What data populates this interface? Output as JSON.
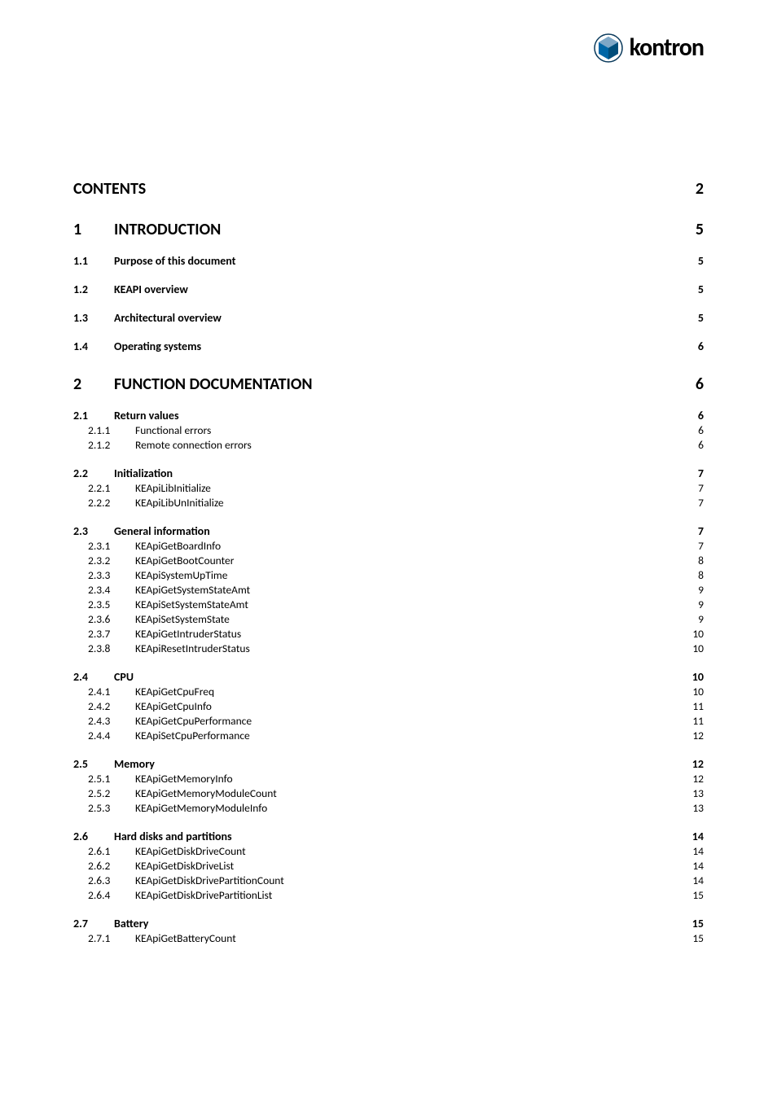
{
  "logo": {
    "brand": "kontron",
    "icon_color_main": "#0066a6",
    "icon_color_accent": "#7fa7c6"
  },
  "toc": {
    "header": {
      "title": "CONTENTS",
      "page": "2"
    },
    "sections": [
      {
        "num": "1",
        "title": "INTRODUCTION",
        "page": "5",
        "subsections": [
          {
            "num": "1.1",
            "title": "Purpose of this document",
            "page": "5",
            "items": []
          },
          {
            "num": "1.2",
            "title": "KEAPI overview",
            "page": "5",
            "items": []
          },
          {
            "num": "1.3",
            "title": "Architectural overview",
            "page": "5",
            "items": []
          },
          {
            "num": "1.4",
            "title": "Operating systems",
            "page": "6",
            "items": []
          }
        ]
      },
      {
        "num": "2",
        "title": "FUNCTION DOCUMENTATION",
        "page": "6",
        "subsections": [
          {
            "num": "2.1",
            "title": "Return values",
            "page": "6",
            "items": [
              {
                "num": "2.1.1",
                "title": "Functional errors",
                "page": "6"
              },
              {
                "num": "2.1.2",
                "title": "Remote connection errors",
                "page": "6"
              }
            ]
          },
          {
            "num": "2.2",
            "title": "Initialization",
            "page": "7",
            "items": [
              {
                "num": "2.2.1",
                "title": "KEApiLibInitialize",
                "page": "7"
              },
              {
                "num": "2.2.2",
                "title": "KEApiLibUnInitialize",
                "page": "7"
              }
            ]
          },
          {
            "num": "2.3",
            "title": "General information",
            "page": "7",
            "items": [
              {
                "num": "2.3.1",
                "title": "KEApiGetBoardInfo",
                "page": "7"
              },
              {
                "num": "2.3.2",
                "title": "KEApiGetBootCounter",
                "page": "8"
              },
              {
                "num": "2.3.3",
                "title": "KEApiSystemUpTime",
                "page": "8"
              },
              {
                "num": "2.3.4",
                "title": "KEApiGetSystemStateAmt",
                "page": "9"
              },
              {
                "num": "2.3.5",
                "title": "KEApiSetSystemStateAmt",
                "page": "9"
              },
              {
                "num": "2.3.6",
                "title": "KEApiSetSystemState",
                "page": "9"
              },
              {
                "num": "2.3.7",
                "title": "KEApiGetIntruderStatus",
                "page": "10"
              },
              {
                "num": "2.3.8",
                "title": "KEApiResetIntruderStatus",
                "page": "10"
              }
            ]
          },
          {
            "num": "2.4",
            "title": "CPU",
            "page": "10",
            "items": [
              {
                "num": "2.4.1",
                "title": "KEApiGetCpuFreq",
                "page": "10"
              },
              {
                "num": "2.4.2",
                "title": "KEApiGetCpuInfo",
                "page": "11"
              },
              {
                "num": "2.4.3",
                "title": "KEApiGetCpuPerformance",
                "page": "11"
              },
              {
                "num": "2.4.4",
                "title": "KEApiSetCpuPerformance",
                "page": "12"
              }
            ]
          },
          {
            "num": "2.5",
            "title": "Memory",
            "page": "12",
            "items": [
              {
                "num": "2.5.1",
                "title": "KEApiGetMemoryInfo",
                "page": "12"
              },
              {
                "num": "2.5.2",
                "title": "KEApiGetMemoryModuleCount",
                "page": "13"
              },
              {
                "num": "2.5.3",
                "title": "KEApiGetMemoryModuleInfo",
                "page": "13"
              }
            ]
          },
          {
            "num": "2.6",
            "title": "Hard disks and partitions",
            "page": "14",
            "items": [
              {
                "num": "2.6.1",
                "title": "KEApiGetDiskDriveCount",
                "page": "14"
              },
              {
                "num": "2.6.2",
                "title": "KEApiGetDiskDriveList",
                "page": "14"
              },
              {
                "num": "2.6.3",
                "title": "KEApiGetDiskDrivePartitionCount",
                "page": "14"
              },
              {
                "num": "2.6.4",
                "title": "KEApiGetDiskDrivePartitionList",
                "page": "15"
              }
            ]
          },
          {
            "num": "2.7",
            "title": "Battery",
            "page": "15",
            "items": [
              {
                "num": "2.7.1",
                "title": "KEApiGetBatteryCount",
                "page": "15"
              }
            ]
          }
        ]
      }
    ]
  }
}
